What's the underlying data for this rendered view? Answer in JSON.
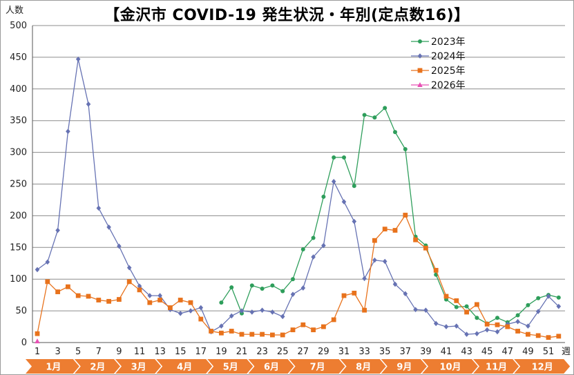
{
  "chart_data": {
    "type": "line",
    "title": "【金沢市  COVID-19  発生状況・年別(定点数16)】",
    "ylabel": "人数",
    "xlabel": "週",
    "ylim": [
      0,
      500
    ],
    "yticks": [
      0,
      50,
      100,
      150,
      200,
      250,
      300,
      350,
      400,
      450,
      500
    ],
    "xlim": [
      1,
      52
    ],
    "xticks": [
      1,
      3,
      5,
      7,
      9,
      11,
      13,
      15,
      17,
      19,
      21,
      23,
      25,
      27,
      29,
      31,
      33,
      35,
      37,
      39,
      41,
      43,
      45,
      47,
      49,
      51
    ],
    "grid": "horizontal",
    "legend_position": "top-right",
    "months": [
      {
        "label": "1月",
        "start": 1,
        "end": 5
      },
      {
        "label": "2月",
        "start": 5,
        "end": 9
      },
      {
        "label": "3月",
        "start": 9,
        "end": 13
      },
      {
        "label": "4月",
        "start": 13,
        "end": 18
      },
      {
        "label": "5月",
        "start": 18,
        "end": 22
      },
      {
        "label": "6月",
        "start": 22,
        "end": 26
      },
      {
        "label": "7月",
        "start": 26,
        "end": 31
      },
      {
        "label": "8月",
        "start": 31,
        "end": 35
      },
      {
        "label": "9月",
        "start": 35,
        "end": 39
      },
      {
        "label": "10月",
        "start": 39,
        "end": 44
      },
      {
        "label": "11月",
        "start": 44,
        "end": 48
      },
      {
        "label": "12月",
        "start": 48,
        "end": 53
      }
    ],
    "month_band_color": "#ed7d31",
    "series": [
      {
        "name": "2023年",
        "color": "#2e9e5b",
        "marker": "circle",
        "points": [
          [
            19,
            63
          ],
          [
            20,
            87
          ],
          [
            21,
            46
          ],
          [
            22,
            90
          ],
          [
            23,
            85
          ],
          [
            24,
            90
          ],
          [
            25,
            81
          ],
          [
            26,
            100
          ],
          [
            27,
            147
          ],
          [
            28,
            165
          ],
          [
            29,
            230
          ],
          [
            30,
            292
          ],
          [
            31,
            292
          ],
          [
            32,
            247
          ],
          [
            33,
            359
          ],
          [
            34,
            355
          ],
          [
            35,
            370
          ],
          [
            36,
            332
          ],
          [
            37,
            305
          ],
          [
            38,
            167
          ],
          [
            39,
            153
          ],
          [
            40,
            107
          ],
          [
            41,
            68
          ],
          [
            42,
            56
          ],
          [
            43,
            57
          ],
          [
            44,
            39
          ],
          [
            45,
            30
          ],
          [
            46,
            39
          ],
          [
            47,
            32
          ],
          [
            48,
            43
          ],
          [
            49,
            59
          ],
          [
            50,
            70
          ],
          [
            51,
            75
          ],
          [
            52,
            71
          ]
        ]
      },
      {
        "name": "2024年",
        "color": "#6672b3",
        "marker": "diamond",
        "points": [
          [
            1,
            115
          ],
          [
            2,
            127
          ],
          [
            3,
            177
          ],
          [
            4,
            333
          ],
          [
            5,
            447
          ],
          [
            6,
            376
          ],
          [
            7,
            212
          ],
          [
            8,
            182
          ],
          [
            9,
            152
          ],
          [
            10,
            118
          ],
          [
            11,
            89
          ],
          [
            12,
            74
          ],
          [
            13,
            74
          ],
          [
            14,
            52
          ],
          [
            15,
            46
          ],
          [
            16,
            50
          ],
          [
            17,
            55
          ],
          [
            18,
            17
          ],
          [
            19,
            26
          ],
          [
            20,
            42
          ],
          [
            21,
            50
          ],
          [
            22,
            48
          ],
          [
            23,
            51
          ],
          [
            24,
            48
          ],
          [
            25,
            41
          ],
          [
            26,
            76
          ],
          [
            27,
            86
          ],
          [
            28,
            135
          ],
          [
            29,
            153
          ],
          [
            30,
            254
          ],
          [
            31,
            222
          ],
          [
            32,
            191
          ],
          [
            33,
            101
          ],
          [
            34,
            130
          ],
          [
            35,
            128
          ],
          [
            36,
            92
          ],
          [
            37,
            77
          ],
          [
            38,
            52
          ],
          [
            39,
            51
          ],
          [
            40,
            30
          ],
          [
            41,
            25
          ],
          [
            42,
            26
          ],
          [
            43,
            13
          ],
          [
            44,
            14
          ],
          [
            45,
            20
          ],
          [
            46,
            17
          ],
          [
            47,
            29
          ],
          [
            48,
            33
          ],
          [
            49,
            26
          ],
          [
            50,
            49
          ],
          [
            51,
            73
          ],
          [
            52,
            57
          ]
        ]
      },
      {
        "name": "2025年",
        "color": "#e8721c",
        "marker": "square",
        "points": [
          [
            1,
            14
          ],
          [
            2,
            96
          ],
          [
            3,
            80
          ],
          [
            4,
            88
          ],
          [
            5,
            74
          ],
          [
            6,
            73
          ],
          [
            7,
            67
          ],
          [
            8,
            65
          ],
          [
            9,
            68
          ],
          [
            10,
            96
          ],
          [
            11,
            83
          ],
          [
            12,
            63
          ],
          [
            13,
            67
          ],
          [
            14,
            55
          ],
          [
            15,
            67
          ],
          [
            16,
            63
          ],
          [
            17,
            37
          ],
          [
            18,
            18
          ],
          [
            19,
            15
          ],
          [
            20,
            18
          ],
          [
            21,
            13
          ],
          [
            22,
            13
          ],
          [
            23,
            13
          ],
          [
            24,
            12
          ],
          [
            25,
            12
          ],
          [
            26,
            20
          ],
          [
            27,
            28
          ],
          [
            28,
            20
          ],
          [
            29,
            25
          ],
          [
            30,
            36
          ],
          [
            31,
            74
          ],
          [
            32,
            78
          ],
          [
            33,
            51
          ],
          [
            34,
            161
          ],
          [
            35,
            179
          ],
          [
            36,
            177
          ],
          [
            37,
            201
          ],
          [
            38,
            162
          ],
          [
            39,
            149
          ],
          [
            40,
            114
          ],
          [
            41,
            73
          ],
          [
            42,
            66
          ],
          [
            43,
            48
          ],
          [
            44,
            60
          ],
          [
            45,
            29
          ],
          [
            46,
            28
          ],
          [
            47,
            25
          ],
          [
            48,
            18
          ],
          [
            49,
            13
          ],
          [
            50,
            11
          ],
          [
            51,
            8
          ],
          [
            52,
            10
          ]
        ]
      },
      {
        "name": "2026年",
        "color": "#e850b4",
        "marker": "triangle",
        "points": [
          [
            1,
            2
          ]
        ]
      }
    ]
  }
}
